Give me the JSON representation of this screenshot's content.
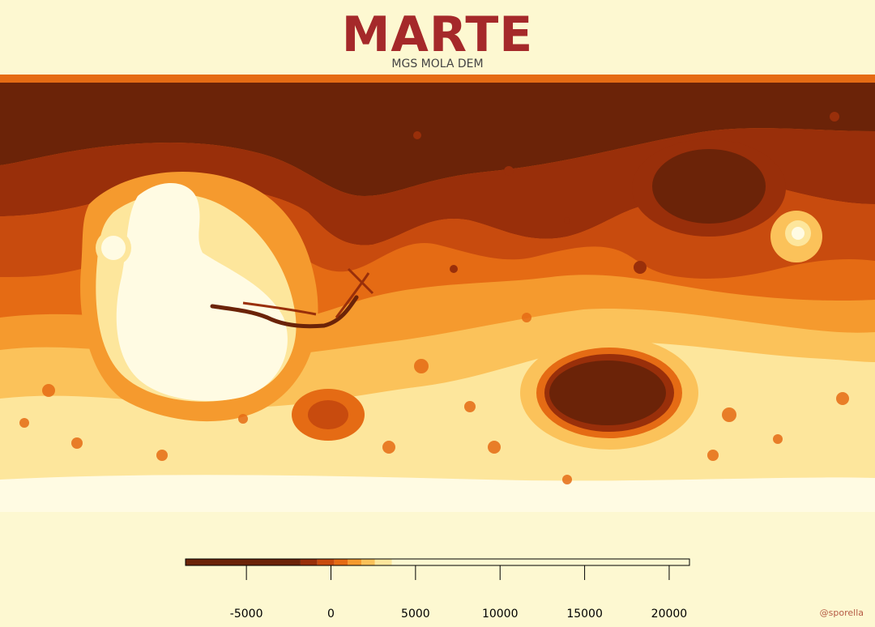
{
  "header": {
    "title": "MARTE",
    "subtitle": "MGS MOLA DEM"
  },
  "credit": "@sporella",
  "colors": {
    "background": "#fdf8d1",
    "title": "#a5292a",
    "palette": [
      "#6b2308",
      "#992f0a",
      "#c84b0e",
      "#e56b14",
      "#f59a2e",
      "#fbc25a",
      "#fde69c",
      "#fffbe3"
    ]
  },
  "legend": {
    "type": "colorbar",
    "ticks": [
      {
        "value": -5000,
        "label": "-5000"
      },
      {
        "value": 0,
        "label": "0"
      },
      {
        "value": 5000,
        "label": "5000"
      },
      {
        "value": 10000,
        "label": "10000"
      },
      {
        "value": 15000,
        "label": "15000"
      },
      {
        "value": 20000,
        "label": "20000"
      }
    ],
    "range": [
      -8600,
      21200
    ],
    "bands": [
      {
        "from": -8600,
        "to": -1800,
        "color": "#6b2308"
      },
      {
        "from": -1800,
        "to": -800,
        "color": "#992f0a"
      },
      {
        "from": -800,
        "to": 200,
        "color": "#c84b0e"
      },
      {
        "from": 200,
        "to": 1000,
        "color": "#e56b14"
      },
      {
        "from": 1000,
        "to": 1800,
        "color": "#f59a2e"
      },
      {
        "from": 1800,
        "to": 2600,
        "color": "#fbc25a"
      },
      {
        "from": 2600,
        "to": 3600,
        "color": "#fde69c"
      },
      {
        "from": 3600,
        "to": 21200,
        "color": "#fdf8d1"
      }
    ]
  },
  "map": {
    "description_of_content": "elevation-shaded map"
  }
}
